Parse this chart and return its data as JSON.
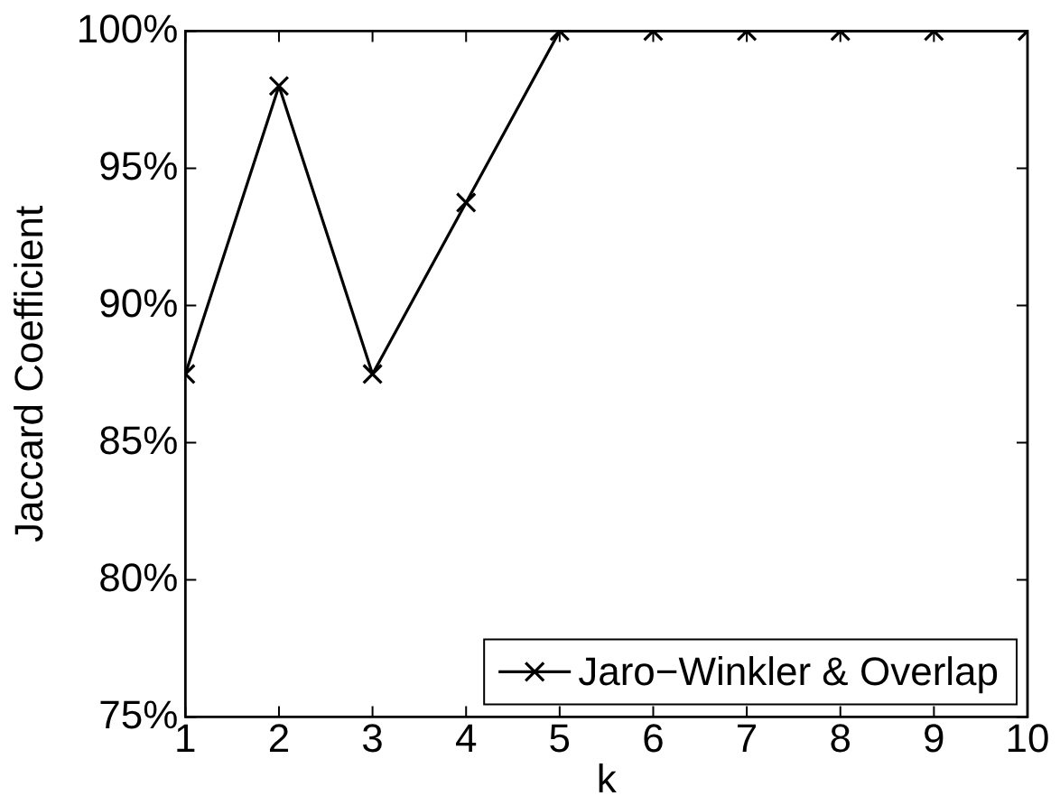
{
  "chart_data": {
    "type": "line",
    "xlabel": "k",
    "ylabel": "Jaccard Coefficient",
    "x": [
      1,
      2,
      3,
      4,
      5,
      6,
      7,
      8,
      9,
      10
    ],
    "series": [
      {
        "name": "Jaro−Winkler & Overlap",
        "color": "#000000",
        "values": [
          87.5,
          98,
          87.5,
          93.75,
          100,
          100,
          100,
          100,
          100,
          100
        ]
      }
    ],
    "xlim": [
      1,
      10
    ],
    "xticks": [
      1,
      2,
      3,
      4,
      5,
      6,
      7,
      8,
      9,
      10
    ],
    "ylim": [
      75,
      100
    ],
    "yticks": [
      {
        "value": 75,
        "label": "75%"
      },
      {
        "value": 80,
        "label": "80%"
      },
      {
        "value": 85,
        "label": "85%"
      },
      {
        "value": 90,
        "label": "90%"
      },
      {
        "value": 95,
        "label": "95%"
      },
      {
        "value": 100,
        "label": "100%"
      }
    ],
    "grid": false,
    "legend": "bottom right",
    "marker": "cross",
    "line_style": "solid"
  }
}
